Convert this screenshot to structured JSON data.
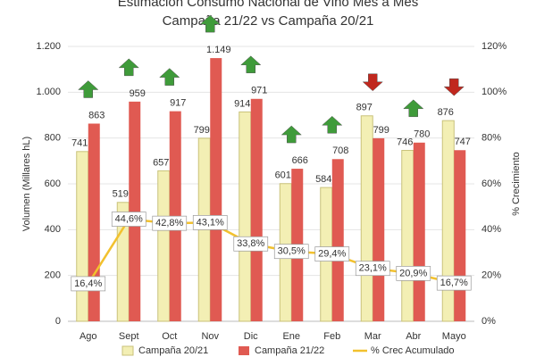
{
  "chart_data": {
    "type": "bar",
    "title": "Estimación Consumo Nacional de Vino Mes a Mes",
    "subtitle": "Campaña 21/22 vs Campaña 20/21",
    "ylabel": "Volumen (Millares hL)",
    "y2label": "% Crecimiento",
    "categories": [
      "Ago",
      "Sept",
      "Oct",
      "Nov",
      "Dic",
      "Ene",
      "Feb",
      "Mar",
      "Abr",
      "Mayo"
    ],
    "series": [
      {
        "name": "Campaña 20/21",
        "type": "bar",
        "color": "#f3efb4",
        "values": [
          741,
          519,
          657,
          799,
          914,
          601,
          584,
          897,
          746,
          876
        ]
      },
      {
        "name": "Campaña 21/22",
        "type": "bar",
        "color": "#e05a52",
        "values": [
          863,
          959,
          917,
          1149,
          971,
          666,
          708,
          799,
          780,
          747
        ],
        "value_labels": [
          "863",
          "959",
          "917",
          "1.149",
          "971",
          "666",
          "708",
          "799",
          "780",
          "747"
        ]
      },
      {
        "name": "% Crec Acumulado",
        "type": "line",
        "axis": "y2",
        "color": "#f2c12e",
        "values": [
          16.4,
          44.6,
          42.8,
          43.1,
          33.8,
          30.5,
          29.4,
          23.1,
          20.9,
          16.7
        ],
        "value_labels": [
          "16,4%",
          "44,6%",
          "42,8%",
          "43,1%",
          "33,8%",
          "30,5%",
          "29,4%",
          "23,1%",
          "20,9%",
          "16,7%"
        ]
      }
    ],
    "ylim": [
      0,
      1200
    ],
    "yticks": [
      0,
      200,
      400,
      600,
      800,
      {
        "value": 1000,
        "label": "1.000"
      },
      {
        "value": 1200,
        "label": "1.200"
      }
    ],
    "y2lim": [
      0,
      120
    ],
    "y2ticks": [
      {
        "value": 0,
        "label": "0%"
      },
      {
        "value": 20,
        "label": "20%"
      },
      {
        "value": 40,
        "label": "40%"
      },
      {
        "value": 60,
        "label": "60%"
      },
      {
        "value": 80,
        "label": "80%"
      },
      {
        "value": 100,
        "label": "100%"
      },
      {
        "value": 120,
        "label": "120%"
      }
    ],
    "grid": true
  }
}
